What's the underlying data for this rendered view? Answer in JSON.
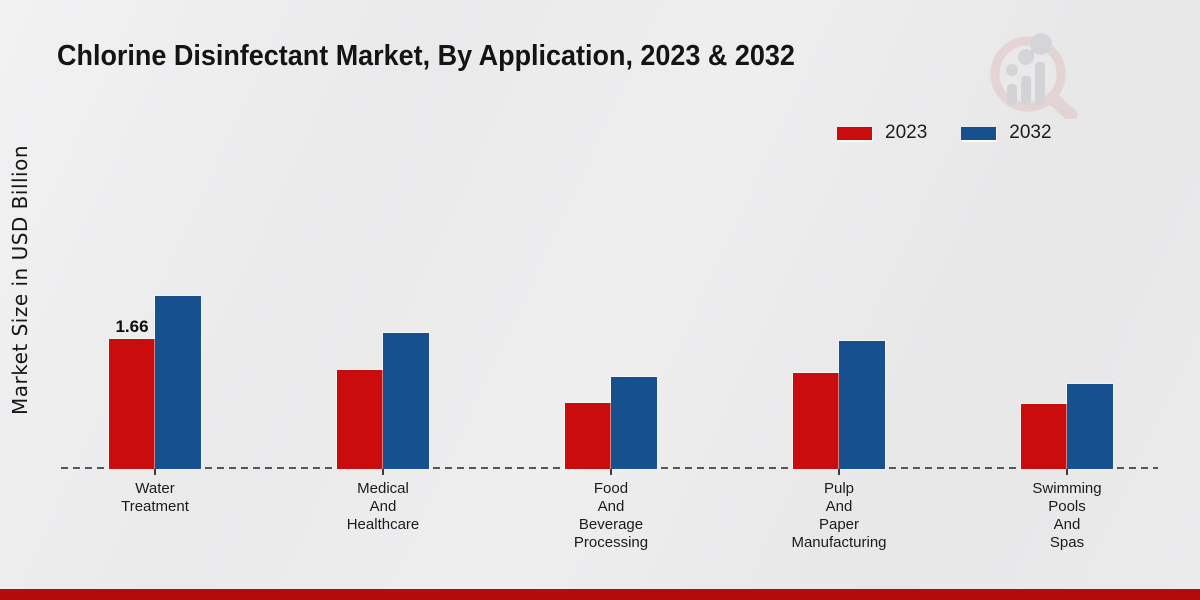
{
  "header": {
    "title": "Chlorine Disinfectant Market, By Application, 2023 & 2032"
  },
  "y_axis": {
    "label": "Market Size in USD Billion"
  },
  "legend": {
    "items": [
      {
        "label": "2023",
        "color": "#cb0c0c"
      },
      {
        "label": "2032",
        "color": "#16508e"
      }
    ]
  },
  "colors": {
    "series_2023": "#cb0c0c",
    "series_2032": "#16508e",
    "footer_bar": "#b30b0b",
    "baseline": "#575757"
  },
  "branding": {
    "logo": "market-research-future-watermark"
  },
  "chart_data": {
    "type": "bar",
    "title": "Chlorine Disinfectant Market, By Application, 2023 & 2032",
    "xlabel": "",
    "ylabel": "Market Size in USD Billion",
    "categories": [
      "Water Treatment",
      "Medical And Healthcare",
      "Food And Beverage Processing",
      "Pulp And Paper Manufacturing",
      "Swimming Pools And Spas"
    ],
    "series": [
      {
        "name": "2023",
        "color": "#cb0c0c",
        "values": [
          1.66,
          1.27,
          0.84,
          1.23,
          0.83
        ]
      },
      {
        "name": "2032",
        "color": "#16508e",
        "values": [
          2.21,
          1.74,
          1.17,
          1.63,
          1.09
        ]
      }
    ],
    "data_labels": [
      {
        "series": "2023",
        "category_index": 0,
        "text": "1.66"
      }
    ],
    "ylim": [
      0,
      2.9
    ],
    "grid": false,
    "legend_position": "top-right",
    "baseline_style": "dashed"
  }
}
